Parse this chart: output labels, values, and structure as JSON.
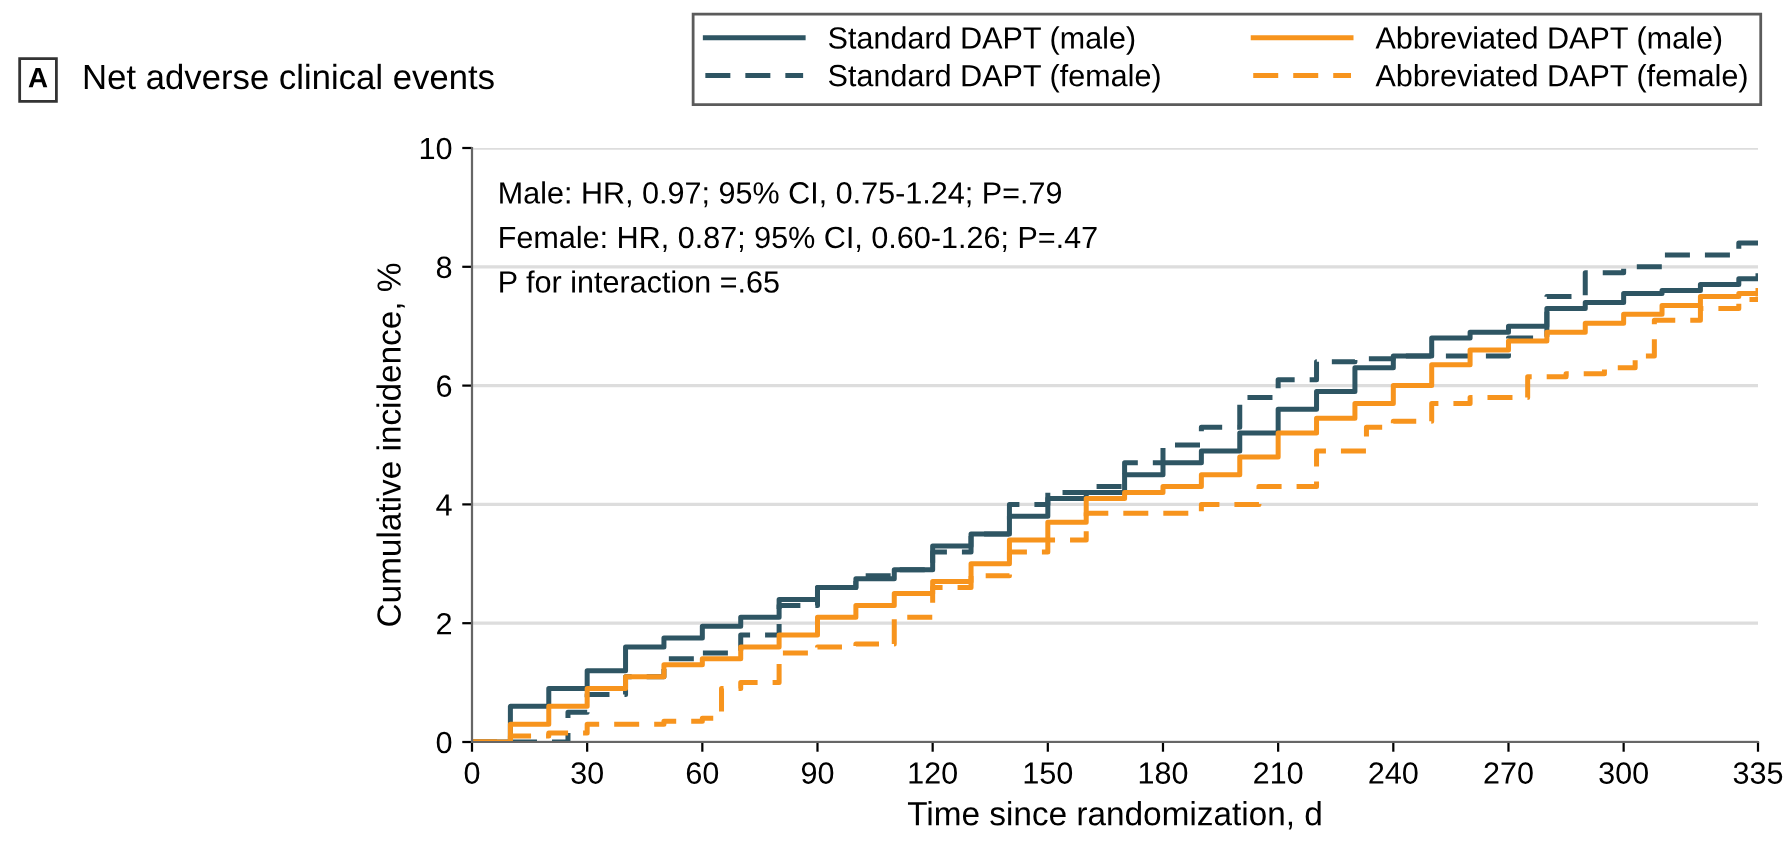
{
  "chart_data": {
    "type": "step",
    "title": "Net adverse clinical events",
    "xlabel": "Time since randomization, d",
    "ylabel": "Cumulative incidence, %",
    "annotations": [
      "A",
      "Male: HR, 0.97; 95% CI, 0.75-1.24; P=.79",
      "Female: HR, 0.87; 95% CI, 0.60-1.26; P=.47",
      "P for interaction =.65"
    ],
    "xlim": [
      0,
      335
    ],
    "xticks": [
      0,
      30,
      60,
      90,
      120,
      150,
      180,
      210,
      240,
      270,
      300,
      335
    ],
    "ylim": [
      0,
      10
    ],
    "yticks": [
      0,
      2,
      4,
      6,
      8,
      10
    ],
    "grid": "y",
    "legend": "top right",
    "series": [
      {
        "name": "Standard DAPT (male)",
        "color": "#2e5563",
        "line_style": "solid",
        "x": [
          0,
          10,
          20,
          30,
          40,
          50,
          60,
          70,
          80,
          90,
          100,
          110,
          120,
          130,
          140,
          150,
          160,
          170,
          180,
          190,
          200,
          210,
          220,
          230,
          240,
          250,
          260,
          270,
          280,
          290,
          300,
          310,
          320,
          330,
          335
        ],
        "values": [
          0,
          0.6,
          0.9,
          1.2,
          1.6,
          1.75,
          1.95,
          2.1,
          2.4,
          2.6,
          2.75,
          2.9,
          3.3,
          3.5,
          3.8,
          4.1,
          4.2,
          4.5,
          4.7,
          4.9,
          5.2,
          5.6,
          5.9,
          6.3,
          6.5,
          6.8,
          6.9,
          7.0,
          7.3,
          7.4,
          7.55,
          7.6,
          7.7,
          7.8,
          7.85
        ]
      },
      {
        "name": "Standard DAPT (female)",
        "color": "#2e5563",
        "line_style": "dashed",
        "x": [
          0,
          20,
          25,
          30,
          40,
          50,
          60,
          70,
          80,
          90,
          100,
          110,
          120,
          130,
          140,
          150,
          160,
          170,
          180,
          190,
          200,
          210,
          220,
          230,
          240,
          250,
          260,
          270,
          280,
          290,
          300,
          310,
          320,
          330,
          335
        ],
        "values": [
          0,
          0,
          0.5,
          0.8,
          1.1,
          1.4,
          1.5,
          1.8,
          2.3,
          2.6,
          2.8,
          2.9,
          3.2,
          3.5,
          4.0,
          4.2,
          4.3,
          4.7,
          5.0,
          5.3,
          5.8,
          6.1,
          6.4,
          6.45,
          6.5,
          6.5,
          6.5,
          6.8,
          7.5,
          7.9,
          8.0,
          8.2,
          8.2,
          8.4,
          8.5
        ]
      },
      {
        "name": "Abbreviated DAPT (male)",
        "color": "#f7941d",
        "line_style": "solid",
        "x": [
          0,
          10,
          20,
          30,
          40,
          50,
          60,
          70,
          80,
          90,
          100,
          110,
          120,
          130,
          140,
          150,
          160,
          170,
          180,
          190,
          200,
          210,
          220,
          230,
          240,
          250,
          260,
          270,
          280,
          290,
          300,
          310,
          320,
          330,
          335
        ],
        "values": [
          0,
          0.3,
          0.6,
          0.9,
          1.1,
          1.3,
          1.4,
          1.6,
          1.8,
          2.1,
          2.3,
          2.5,
          2.7,
          3.0,
          3.4,
          3.7,
          4.1,
          4.2,
          4.3,
          4.5,
          4.8,
          5.2,
          5.45,
          5.7,
          6.0,
          6.35,
          6.6,
          6.75,
          6.9,
          7.05,
          7.2,
          7.35,
          7.5,
          7.55,
          7.6
        ]
      },
      {
        "name": "Abbreviated DAPT (female)",
        "color": "#f7941d",
        "line_style": "dashed",
        "x": [
          0,
          10,
          20,
          30,
          40,
          50,
          60,
          65,
          70,
          80,
          90,
          100,
          110,
          120,
          130,
          140,
          150,
          160,
          170,
          180,
          190,
          205,
          220,
          233,
          240,
          250,
          260,
          275,
          285,
          295,
          303,
          308,
          320,
          330,
          335
        ],
        "values": [
          0,
          0.1,
          0.15,
          0.3,
          0.3,
          0.35,
          0.4,
          0.9,
          1.0,
          1.5,
          1.6,
          1.65,
          2.1,
          2.6,
          2.8,
          3.2,
          3.4,
          3.85,
          3.85,
          3.85,
          4.0,
          4.3,
          4.9,
          5.3,
          5.4,
          5.7,
          5.8,
          6.15,
          6.2,
          6.3,
          6.5,
          7.1,
          7.3,
          7.45,
          7.5
        ]
      }
    ]
  }
}
